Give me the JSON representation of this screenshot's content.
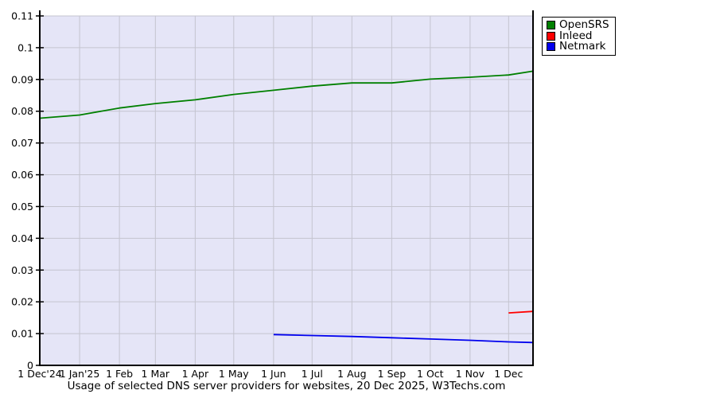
{
  "chart_data": {
    "type": "line",
    "title": "Usage of selected DNS server providers for websites, 20 Dec 2025, W3Techs.com",
    "xlabel": "",
    "ylabel": "",
    "ylim": [
      0,
      0.11
    ],
    "x_range_days": [
      0,
      384
    ],
    "grid": true,
    "legend_position": "top-right",
    "colors": {
      "plot_bg": "#e5e5f7",
      "grid": "#c4c4cf",
      "axis": "#000000",
      "text": "#000000"
    },
    "y_ticks": [
      {
        "value": 0,
        "label": "0"
      },
      {
        "value": 0.01,
        "label": "0.01"
      },
      {
        "value": 0.02,
        "label": "0.02"
      },
      {
        "value": 0.03,
        "label": "0.03"
      },
      {
        "value": 0.04,
        "label": "0.04"
      },
      {
        "value": 0.05,
        "label": "0.05"
      },
      {
        "value": 0.06,
        "label": "0.06"
      },
      {
        "value": 0.07,
        "label": "0.07"
      },
      {
        "value": 0.08,
        "label": "0.08"
      },
      {
        "value": 0.09,
        "label": "0.09"
      },
      {
        "value": 0.1,
        "label": "0.1"
      },
      {
        "value": 0.11,
        "label": "0.11"
      }
    ],
    "x_ticks": [
      {
        "day": 0,
        "label": "1 Dec'24"
      },
      {
        "day": 31,
        "label": "1 Jan'25"
      },
      {
        "day": 62,
        "label": "1 Feb"
      },
      {
        "day": 90,
        "label": "1 Mar"
      },
      {
        "day": 121,
        "label": "1 Apr"
      },
      {
        "day": 151,
        "label": "1 May"
      },
      {
        "day": 182,
        "label": "1 Jun"
      },
      {
        "day": 212,
        "label": "1 Jul"
      },
      {
        "day": 243,
        "label": "1 Aug"
      },
      {
        "day": 274,
        "label": "1 Sep"
      },
      {
        "day": 304,
        "label": "1 Oct"
      },
      {
        "day": 335,
        "label": "1 Nov"
      },
      {
        "day": 365,
        "label": "1 Dec"
      }
    ],
    "series": [
      {
        "name": "OpenSRS",
        "color": "#008000",
        "points": [
          {
            "day": 0,
            "value": 0.0778
          },
          {
            "day": 31,
            "value": 0.0788
          },
          {
            "day": 62,
            "value": 0.081
          },
          {
            "day": 90,
            "value": 0.0824
          },
          {
            "day": 121,
            "value": 0.0836
          },
          {
            "day": 151,
            "value": 0.0853
          },
          {
            "day": 182,
            "value": 0.0866
          },
          {
            "day": 212,
            "value": 0.0879
          },
          {
            "day": 243,
            "value": 0.0889
          },
          {
            "day": 274,
            "value": 0.0889
          },
          {
            "day": 304,
            "value": 0.0901
          },
          {
            "day": 335,
            "value": 0.0907
          },
          {
            "day": 365,
            "value": 0.0914
          },
          {
            "day": 384,
            "value": 0.0926
          }
        ]
      },
      {
        "name": "Inleed",
        "color": "#ff0000",
        "points": [
          {
            "day": 365,
            "value": 0.0165
          },
          {
            "day": 384,
            "value": 0.017
          }
        ]
      },
      {
        "name": "Netmark",
        "color": "#0000ee",
        "points": [
          {
            "day": 182,
            "value": 0.0097
          },
          {
            "day": 212,
            "value": 0.0094
          },
          {
            "day": 243,
            "value": 0.0091
          },
          {
            "day": 274,
            "value": 0.0087
          },
          {
            "day": 304,
            "value": 0.0083
          },
          {
            "day": 335,
            "value": 0.0079
          },
          {
            "day": 365,
            "value": 0.0074
          },
          {
            "day": 384,
            "value": 0.0072
          }
        ]
      }
    ]
  }
}
